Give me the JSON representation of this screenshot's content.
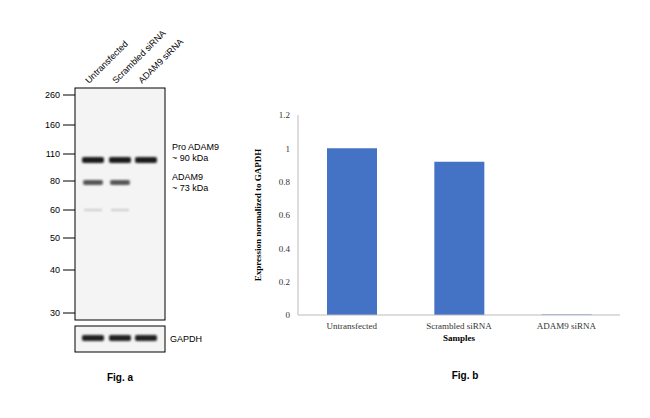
{
  "chart_data": {
    "type": "bar",
    "title": "Fig. b",
    "x_label": "Samples",
    "y_label": "Expression normalized to GAPDH",
    "categories": [
      "Untransfected",
      "Scrambled siRNA",
      "ADAM9 siRNA"
    ],
    "values": [
      1,
      0.92,
      0.003
    ],
    "color": "#4472c4",
    "ylim": [
      0,
      1.2
    ],
    "yticks": [
      0,
      0.2,
      0.4,
      0.6,
      0.8,
      1,
      1.2
    ],
    "grid": false
  },
  "blot": {
    "caption": "Fig. a",
    "markers": [
      260,
      160,
      110,
      80,
      60,
      50,
      40,
      30
    ],
    "lanes": [
      "Untransfected",
      "Scrambled siRNA",
      "ADAM9 siRNA"
    ],
    "bands": [
      {
        "label": "Pro ADAM9",
        "size": "~ 90 kDa"
      },
      {
        "label": "ADAM9",
        "size": "~ 73 kDa"
      }
    ],
    "loading_control": "GAPDH"
  }
}
